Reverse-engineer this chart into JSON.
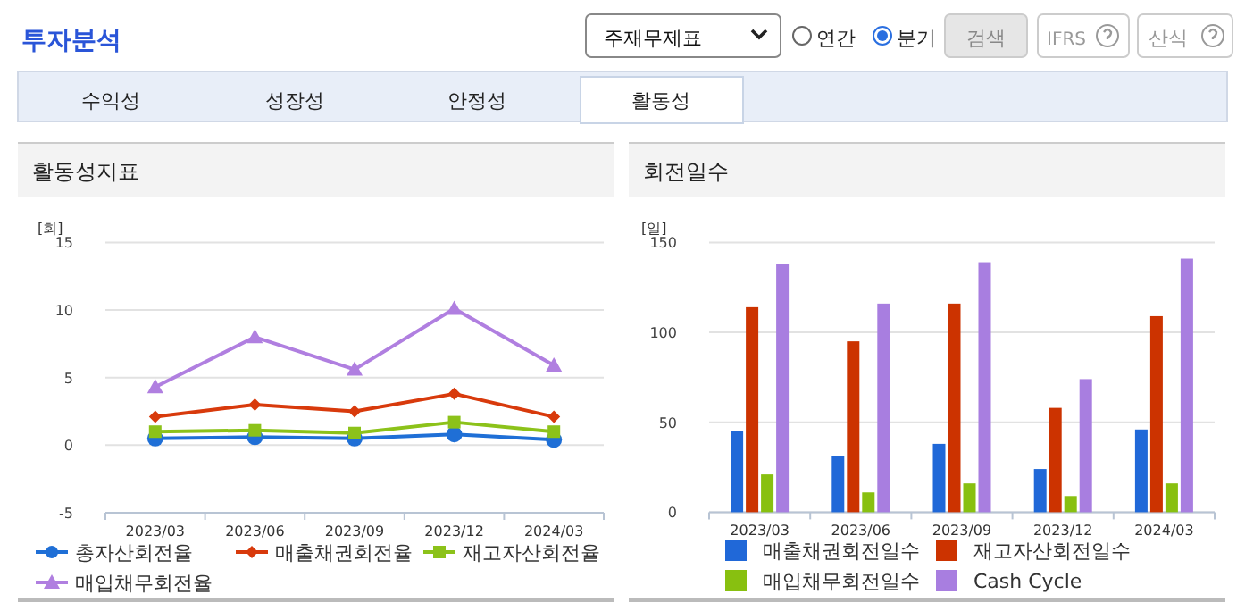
{
  "chart_data": [
    {
      "type": "other",
      "title": "투자분석",
      "annotations": [
        "주재무제표",
        "연간",
        "분기",
        "검색",
        "IFRS",
        "산식",
        "수익성",
        "성장성",
        "안정성",
        "활동성"
      ]
    },
    {
      "type": "line",
      "title": "활동성지표",
      "ylabel": "[회]",
      "categories": [
        "2023/03",
        "2023/06",
        "2023/09",
        "2023/12",
        "2024/03"
      ],
      "ylim": [
        -5,
        15
      ],
      "yticks": [
        -5,
        0,
        5,
        10,
        15
      ],
      "grid": "y",
      "legend": "bottom",
      "series": [
        {
          "name": "총자산회전율",
          "color": "#1f6fd6",
          "marker": "circle",
          "values": [
            0.5,
            0.6,
            0.5,
            0.8,
            0.4
          ]
        },
        {
          "name": "매출채권회전율",
          "color": "#d83a0c",
          "marker": "diamond",
          "values": [
            2.1,
            3.0,
            2.5,
            3.8,
            2.1
          ]
        },
        {
          "name": "재고자산회전율",
          "color": "#8cc21a",
          "marker": "square",
          "values": [
            1.0,
            1.1,
            0.9,
            1.7,
            1.0
          ]
        },
        {
          "name": "매입채무회전율",
          "color": "#b07fe0",
          "marker": "triangle",
          "values": [
            4.3,
            8.0,
            5.6,
            10.1,
            5.9
          ]
        }
      ]
    },
    {
      "type": "bar",
      "title": "회전일수",
      "ylabel": "[일]",
      "categories": [
        "2023/03",
        "2023/06",
        "2023/09",
        "2023/12",
        "2024/03"
      ],
      "ylim": [
        0,
        150
      ],
      "yticks": [
        0,
        50,
        100,
        150
      ],
      "grid": "y",
      "legend": "bottom",
      "series": [
        {
          "name": "매출채권회전일수",
          "color": "#2068d8",
          "values": [
            45,
            31,
            38,
            24,
            46
          ]
        },
        {
          "name": "재고자산회전일수",
          "color": "#cc3300",
          "values": [
            114,
            95,
            116,
            58,
            109
          ]
        },
        {
          "name": "매입채무회전일수",
          "color": "#88c010",
          "values": [
            21,
            11,
            16,
            9,
            16
          ]
        },
        {
          "name": "Cash Cycle",
          "color": "#a87ee0",
          "values": [
            138,
            116,
            139,
            74,
            141
          ]
        }
      ]
    }
  ]
}
